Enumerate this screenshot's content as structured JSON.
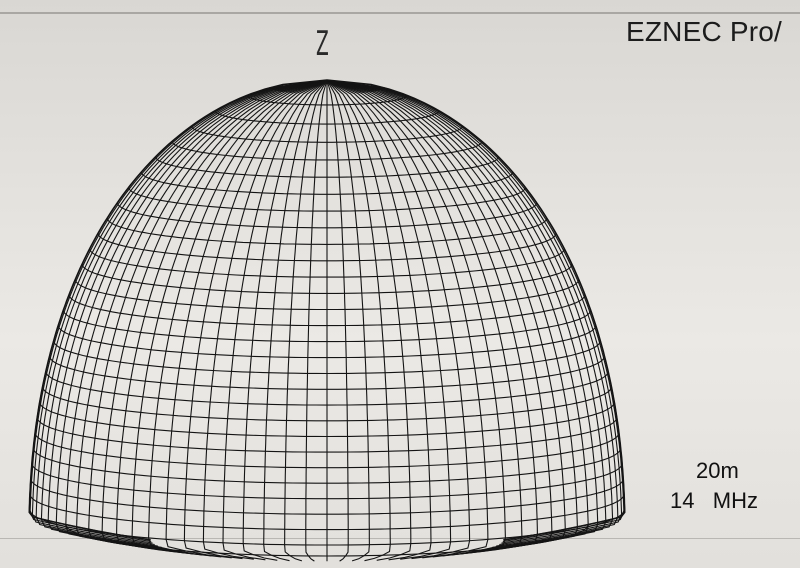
{
  "window": {
    "app_title": "EZNEC Pro/"
  },
  "plot": {
    "axis_label": "Z",
    "band_label": "20m",
    "frequency_label": "14   MHz",
    "pattern_name": "3d-pattern-wireframe"
  }
}
